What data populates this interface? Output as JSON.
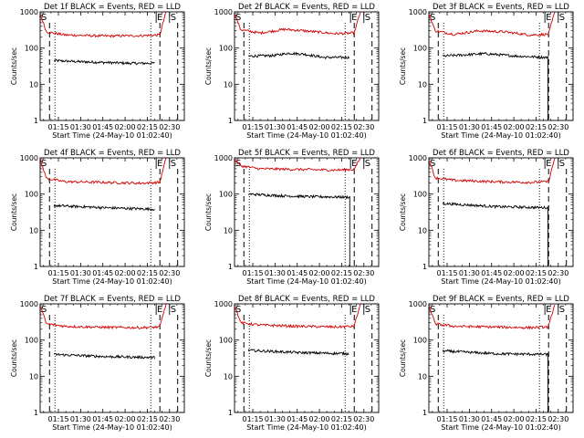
{
  "chart_data": [
    {
      "type": "line",
      "title": "Det 1f BLACK = Events, RED = LLD",
      "xlabel": "Start Time (24-May-10 01:02:40)",
      "ylabel": "Counts/sec",
      "yscale": "log",
      "ylim": [
        1,
        1000
      ],
      "xlim": [
        "01:02:40",
        "02:40:00"
      ],
      "x_ticks": [
        "01:15",
        "01:30",
        "01:45",
        "02:00",
        "02:15",
        "02:30"
      ],
      "y_ticks": [
        "1",
        "10",
        "100",
        "1000"
      ],
      "markers": [
        {
          "label": "S",
          "time": "01:02:40"
        },
        {
          "label": "E",
          "time": "02:21:00"
        },
        {
          "label": "S",
          "time": "02:30:00"
        }
      ],
      "dashed_lines": [
        "01:09:00",
        "02:23:30",
        "02:35:30"
      ],
      "dotted_lines": [
        "01:12:40",
        "02:17:20"
      ],
      "series": [
        {
          "color": "#000000",
          "start": "01:12:00",
          "end": "02:20:00",
          "points": [
            [
              0,
              45
            ],
            [
              0.25,
              42
            ],
            [
              0.5,
              40
            ],
            [
              0.75,
              38
            ],
            [
              1,
              38
            ]
          ],
          "drop": false
        },
        {
          "color": "#d40000",
          "start": "01:02:40",
          "end": "02:27:40",
          "points": [
            [
              0,
              900
            ],
            [
              0.05,
              280
            ],
            [
              0.2,
              230
            ],
            [
              0.5,
              215
            ],
            [
              0.8,
              220
            ],
            [
              0.95,
              230
            ],
            [
              1,
              1000
            ]
          ]
        }
      ]
    },
    {
      "type": "line",
      "title": "Det 2f BLACK = Events, RED = LLD",
      "xlabel": "Start Time (24-May-10 01:02:40)",
      "ylabel": "Counts/sec",
      "yscale": "log",
      "ylim": [
        1,
        1000
      ],
      "xlim": [
        "01:02:40",
        "02:40:00"
      ],
      "x_ticks": [
        "01:15",
        "01:30",
        "01:45",
        "02:00",
        "02:15",
        "02:30"
      ],
      "y_ticks": [
        "1",
        "10",
        "100",
        "1000"
      ],
      "markers": [
        {
          "label": "S",
          "time": "01:02:40"
        },
        {
          "label": "E",
          "time": "02:21:00"
        },
        {
          "label": "S",
          "time": "02:30:00"
        }
      ],
      "dashed_lines": [
        "01:09:00",
        "02:23:30",
        "02:35:30"
      ],
      "dotted_lines": [
        "01:12:40",
        "02:17:20"
      ],
      "series": [
        {
          "color": "#000000",
          "start": "01:12:00",
          "end": "02:20:00",
          "points": [
            [
              0,
              60
            ],
            [
              0.25,
              62
            ],
            [
              0.4,
              72
            ],
            [
              0.55,
              68
            ],
            [
              0.75,
              55
            ],
            [
              1,
              55
            ]
          ],
          "drop": false
        },
        {
          "color": "#d40000",
          "start": "01:02:40",
          "end": "02:27:40",
          "points": [
            [
              0,
              900
            ],
            [
              0.05,
              320
            ],
            [
              0.2,
              260
            ],
            [
              0.4,
              330
            ],
            [
              0.55,
              300
            ],
            [
              0.8,
              250
            ],
            [
              0.95,
              260
            ],
            [
              1,
              1000
            ]
          ]
        }
      ]
    },
    {
      "type": "line",
      "title": "Det 3f BLACK = Events, RED = LLD",
      "xlabel": "Start Time (24-May-10 01:02:40)",
      "ylabel": "Counts/sec",
      "yscale": "log",
      "ylim": [
        1,
        1000
      ],
      "xlim": [
        "01:02:40",
        "02:40:00"
      ],
      "x_ticks": [
        "01:15",
        "01:30",
        "01:45",
        "02:00",
        "02:15",
        "02:30"
      ],
      "y_ticks": [
        "1",
        "10",
        "100",
        "1000"
      ],
      "markers": [
        {
          "label": "S",
          "time": "01:02:40"
        },
        {
          "label": "E",
          "time": "02:21:00"
        },
        {
          "label": "S",
          "time": "02:30:00"
        }
      ],
      "dashed_lines": [
        "01:09:00",
        "02:23:30",
        "02:35:30"
      ],
      "dotted_lines": [
        "01:12:40",
        "02:17:20"
      ],
      "series": [
        {
          "color": "#000000",
          "start": "01:12:00",
          "end": "02:23:00",
          "points": [
            [
              0,
              60
            ],
            [
              0.4,
              70
            ],
            [
              0.7,
              60
            ],
            [
              1,
              55
            ]
          ],
          "drop": true
        },
        {
          "color": "#d40000",
          "start": "01:02:40",
          "end": "02:27:40",
          "points": [
            [
              0,
              900
            ],
            [
              0.05,
              300
            ],
            [
              0.2,
              240
            ],
            [
              0.4,
              300
            ],
            [
              0.6,
              280
            ],
            [
              0.8,
              230
            ],
            [
              0.95,
              240
            ],
            [
              1,
              1000
            ]
          ]
        }
      ]
    },
    {
      "type": "line",
      "title": "Det 4f BLACK = Events, RED = LLD",
      "xlabel": "Start Time (24-May-10 01:02:40)",
      "ylabel": "Counts/sec",
      "yscale": "log",
      "ylim": [
        1,
        1000
      ],
      "xlim": [
        "01:02:40",
        "02:40:00"
      ],
      "x_ticks": [
        "01:15",
        "01:30",
        "01:45",
        "02:00",
        "02:15",
        "02:30"
      ],
      "y_ticks": [
        "1",
        "10",
        "100",
        "1000"
      ],
      "markers": [
        {
          "label": "S",
          "time": "01:02:40"
        },
        {
          "label": "E",
          "time": "02:21:00"
        },
        {
          "label": "S",
          "time": "02:30:00"
        }
      ],
      "dashed_lines": [
        "01:09:00",
        "02:23:30",
        "02:35:30"
      ],
      "dotted_lines": [
        "01:12:40",
        "02:17:20"
      ],
      "series": [
        {
          "color": "#000000",
          "start": "01:12:00",
          "end": "02:20:00",
          "points": [
            [
              0,
              48
            ],
            [
              0.5,
              42
            ],
            [
              1,
              38
            ]
          ],
          "drop": false
        },
        {
          "color": "#d40000",
          "start": "01:02:40",
          "end": "02:27:40",
          "points": [
            [
              0,
              900
            ],
            [
              0.05,
              270
            ],
            [
              0.2,
              220
            ],
            [
              0.5,
              210
            ],
            [
              0.8,
              200
            ],
            [
              0.95,
              210
            ],
            [
              1,
              1000
            ]
          ]
        }
      ]
    },
    {
      "type": "line",
      "title": "Det 5f BLACK = Events, RED = LLD",
      "xlabel": "Start Time (24-May-10 01:02:40)",
      "ylabel": "Counts/sec",
      "yscale": "log",
      "ylim": [
        1,
        1000
      ],
      "xlim": [
        "01:02:40",
        "02:40:00"
      ],
      "x_ticks": [
        "01:15",
        "01:30",
        "01:45",
        "02:00",
        "02:15",
        "02:30"
      ],
      "y_ticks": [
        "1",
        "10",
        "100",
        "1000"
      ],
      "markers": [
        {
          "label": "S",
          "time": "01:02:40"
        },
        {
          "label": "E",
          "time": "02:21:00"
        },
        {
          "label": "S",
          "time": "02:30:00"
        }
      ],
      "dashed_lines": [
        "01:09:00",
        "02:23:30",
        "02:35:30"
      ],
      "dotted_lines": [
        "01:12:40",
        "02:17:20"
      ],
      "series": [
        {
          "color": "#000000",
          "start": "01:12:00",
          "end": "02:20:30",
          "points": [
            [
              0,
              100
            ],
            [
              0.3,
              90
            ],
            [
              0.6,
              85
            ],
            [
              1,
              82
            ]
          ],
          "drop": true
        },
        {
          "color": "#d40000",
          "start": "01:02:40",
          "end": "02:27:40",
          "points": [
            [
              0,
              900
            ],
            [
              0.05,
              600
            ],
            [
              0.2,
              500
            ],
            [
              0.5,
              480
            ],
            [
              0.8,
              460
            ],
            [
              0.95,
              480
            ],
            [
              1,
              1000
            ]
          ]
        }
      ]
    },
    {
      "type": "line",
      "title": "Det 6f BLACK = Events, RED = LLD",
      "xlabel": "Start Time (24-May-10 01:02:40)",
      "ylabel": "Counts/sec",
      "yscale": "log",
      "ylim": [
        1,
        1000
      ],
      "xlim": [
        "01:02:40",
        "02:40:00"
      ],
      "x_ticks": [
        "01:15",
        "01:30",
        "01:45",
        "02:00",
        "02:15",
        "02:30"
      ],
      "y_ticks": [
        "1",
        "10",
        "100",
        "1000"
      ],
      "markers": [
        {
          "label": "S",
          "time": "01:02:40"
        },
        {
          "label": "E",
          "time": "02:21:00"
        },
        {
          "label": "S",
          "time": "02:30:00"
        }
      ],
      "dashed_lines": [
        "01:09:00",
        "02:23:30",
        "02:35:30"
      ],
      "dotted_lines": [
        "01:12:40",
        "02:17:20"
      ],
      "series": [
        {
          "color": "#000000",
          "start": "01:12:00",
          "end": "02:23:00",
          "points": [
            [
              0,
              55
            ],
            [
              0.5,
              45
            ],
            [
              1,
              42
            ]
          ],
          "drop": true
        },
        {
          "color": "#d40000",
          "start": "01:02:40",
          "end": "02:27:40",
          "points": [
            [
              0,
              900
            ],
            [
              0.05,
              280
            ],
            [
              0.2,
              240
            ],
            [
              0.5,
              220
            ],
            [
              0.8,
              210
            ],
            [
              0.95,
              220
            ],
            [
              1,
              1000
            ]
          ]
        }
      ]
    },
    {
      "type": "line",
      "title": "Det 7f BLACK = Events, RED = LLD",
      "xlabel": "Start Time (24-May-10 01:02:40)",
      "ylabel": "Counts/sec",
      "yscale": "log",
      "ylim": [
        1,
        1000
      ],
      "xlim": [
        "01:02:40",
        "02:40:00"
      ],
      "x_ticks": [
        "01:15",
        "01:30",
        "01:45",
        "02:00",
        "02:15",
        "02:30"
      ],
      "y_ticks": [
        "1",
        "10",
        "100",
        "1000"
      ],
      "markers": [
        {
          "label": "S",
          "time": "01:02:40"
        },
        {
          "label": "E",
          "time": "02:21:00"
        },
        {
          "label": "S",
          "time": "02:30:00"
        }
      ],
      "dashed_lines": [
        "01:09:00",
        "02:23:30",
        "02:35:30"
      ],
      "dotted_lines": [
        "01:12:40",
        "02:17:20"
      ],
      "series": [
        {
          "color": "#000000",
          "start": "01:12:00",
          "end": "02:20:00",
          "points": [
            [
              0,
              40
            ],
            [
              0.5,
              35
            ],
            [
              1,
              33
            ]
          ],
          "drop": false
        },
        {
          "color": "#d40000",
          "start": "01:02:40",
          "end": "02:27:40",
          "points": [
            [
              0,
              900
            ],
            [
              0.05,
              280
            ],
            [
              0.2,
              240
            ],
            [
              0.5,
              225
            ],
            [
              0.8,
              220
            ],
            [
              0.95,
              230
            ],
            [
              1,
              1000
            ]
          ]
        }
      ]
    },
    {
      "type": "line",
      "title": "Det 8f BLACK = Events, RED = LLD",
      "xlabel": "Start Time (24-May-10 01:02:40)",
      "ylabel": "Counts/sec",
      "yscale": "log",
      "ylim": [
        1,
        1000
      ],
      "xlim": [
        "01:02:40",
        "02:40:00"
      ],
      "x_ticks": [
        "01:15",
        "01:30",
        "01:45",
        "02:00",
        "02:15",
        "02:30"
      ],
      "y_ticks": [
        "1",
        "10",
        "100",
        "1000"
      ],
      "markers": [
        {
          "label": "S",
          "time": "01:02:40"
        },
        {
          "label": "E",
          "time": "02:21:00"
        },
        {
          "label": "S",
          "time": "02:30:00"
        }
      ],
      "dashed_lines": [
        "01:09:00",
        "02:23:30",
        "02:35:30"
      ],
      "dotted_lines": [
        "01:12:40",
        "02:17:20"
      ],
      "series": [
        {
          "color": "#000000",
          "start": "01:12:00",
          "end": "02:20:00",
          "points": [
            [
              0,
              52
            ],
            [
              0.5,
              45
            ],
            [
              1,
              42
            ]
          ],
          "drop": false
        },
        {
          "color": "#d40000",
          "start": "01:02:40",
          "end": "02:27:40",
          "points": [
            [
              0,
              900
            ],
            [
              0.05,
              300
            ],
            [
              0.2,
              260
            ],
            [
              0.5,
              240
            ],
            [
              0.8,
              230
            ],
            [
              0.95,
              240
            ],
            [
              1,
              1000
            ]
          ]
        }
      ]
    },
    {
      "type": "line",
      "title": "Det 9f BLACK = Events, RED = LLD",
      "xlabel": "Start Time (24-May-10 01:02:40)",
      "ylabel": "Counts/sec",
      "yscale": "log",
      "ylim": [
        1,
        1000
      ],
      "xlim": [
        "01:02:40",
        "02:40:00"
      ],
      "x_ticks": [
        "01:15",
        "01:30",
        "01:45",
        "02:00",
        "02:15",
        "02:30"
      ],
      "y_ticks": [
        "1",
        "10",
        "100",
        "1000"
      ],
      "markers": [
        {
          "label": "S",
          "time": "01:02:40"
        },
        {
          "label": "E",
          "time": "02:21:00"
        },
        {
          "label": "S",
          "time": "02:30:00"
        }
      ],
      "dashed_lines": [
        "01:09:00",
        "02:23:30",
        "02:35:30"
      ],
      "dotted_lines": [
        "01:12:40",
        "02:17:20"
      ],
      "series": [
        {
          "color": "#000000",
          "start": "01:12:00",
          "end": "02:23:00",
          "points": [
            [
              0,
              50
            ],
            [
              0.5,
              42
            ],
            [
              1,
              40
            ]
          ],
          "drop": true
        },
        {
          "color": "#d40000",
          "start": "01:02:40",
          "end": "02:27:40",
          "points": [
            [
              0,
              900
            ],
            [
              0.05,
              280
            ],
            [
              0.2,
              240
            ],
            [
              0.5,
              230
            ],
            [
              0.8,
              220
            ],
            [
              0.95,
              230
            ],
            [
              1,
              1000
            ]
          ]
        }
      ]
    }
  ]
}
